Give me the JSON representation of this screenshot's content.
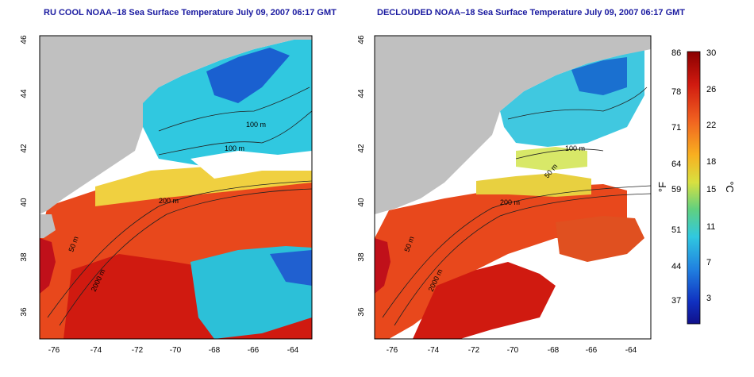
{
  "left_panel": {
    "title": "RU COOL NOAA–18 Sea Surface Temperature July 09, 2007 06:17 GMT"
  },
  "right_panel": {
    "title": "DECLOUDED NOAA–18 Sea Surface Temperature July 09, 2007 06:17 GMT"
  },
  "axes": {
    "lat_ticks": [
      "46",
      "44",
      "42",
      "40",
      "38",
      "36"
    ],
    "lon_ticks": [
      "-76",
      "-74",
      "-72",
      "-70",
      "-68",
      "-66",
      "-64"
    ]
  },
  "contours": {
    "left": [
      "100 m",
      "100 m",
      "200 m",
      "50 m",
      "2000 m"
    ],
    "right": [
      "100 m",
      "50 m",
      "200 m",
      "50 m",
      "2000 m"
    ]
  },
  "colorbar": {
    "fahrenheit_ticks": [
      "86",
      "78",
      "71",
      "64",
      "59",
      "51",
      "44",
      "37"
    ],
    "celsius_ticks": [
      "30",
      "26",
      "22",
      "18",
      "15",
      "11",
      "7",
      "3"
    ],
    "fahrenheit_unit": "°F",
    "celsius_unit": "°C"
  },
  "colors": {
    "land": "#c0c0c0",
    "warm": "#e8401a",
    "hot": "#c80a0a",
    "cool": "#29b6e0",
    "cold": "#1030c0",
    "title": "#1a1aa0"
  }
}
